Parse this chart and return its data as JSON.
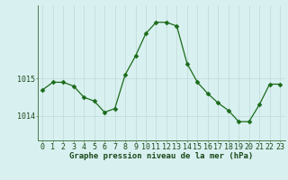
{
  "hours": [
    0,
    1,
    2,
    3,
    4,
    5,
    6,
    7,
    8,
    9,
    10,
    11,
    12,
    13,
    14,
    15,
    16,
    17,
    18,
    19,
    20,
    21,
    22,
    23
  ],
  "values": [
    1014.7,
    1014.9,
    1014.9,
    1014.8,
    1014.5,
    1014.4,
    1014.1,
    1014.2,
    1015.1,
    1015.6,
    1016.2,
    1016.5,
    1016.5,
    1016.4,
    1015.4,
    1014.9,
    1014.6,
    1014.35,
    1014.15,
    1013.85,
    1013.85,
    1014.3,
    1014.85,
    1014.85
  ],
  "line_color": "#1a6b1a",
  "marker": "D",
  "marker_size": 2.5,
  "background_color": "#d9f0f0",
  "grid_color": "#c0d8d8",
  "xlabel": "Graphe pression niveau de la mer (hPa)",
  "xlabel_fontsize": 6.5,
  "ytick_labels": [
    "1014",
    "1015"
  ],
  "ytick_values": [
    1014,
    1015
  ],
  "ylim": [
    1013.35,
    1016.95
  ],
  "xlim": [
    -0.5,
    23.5
  ],
  "tick_fontsize": 6.0,
  "label_color": "#1a4a1a",
  "spine_color": "#4a7a4a"
}
